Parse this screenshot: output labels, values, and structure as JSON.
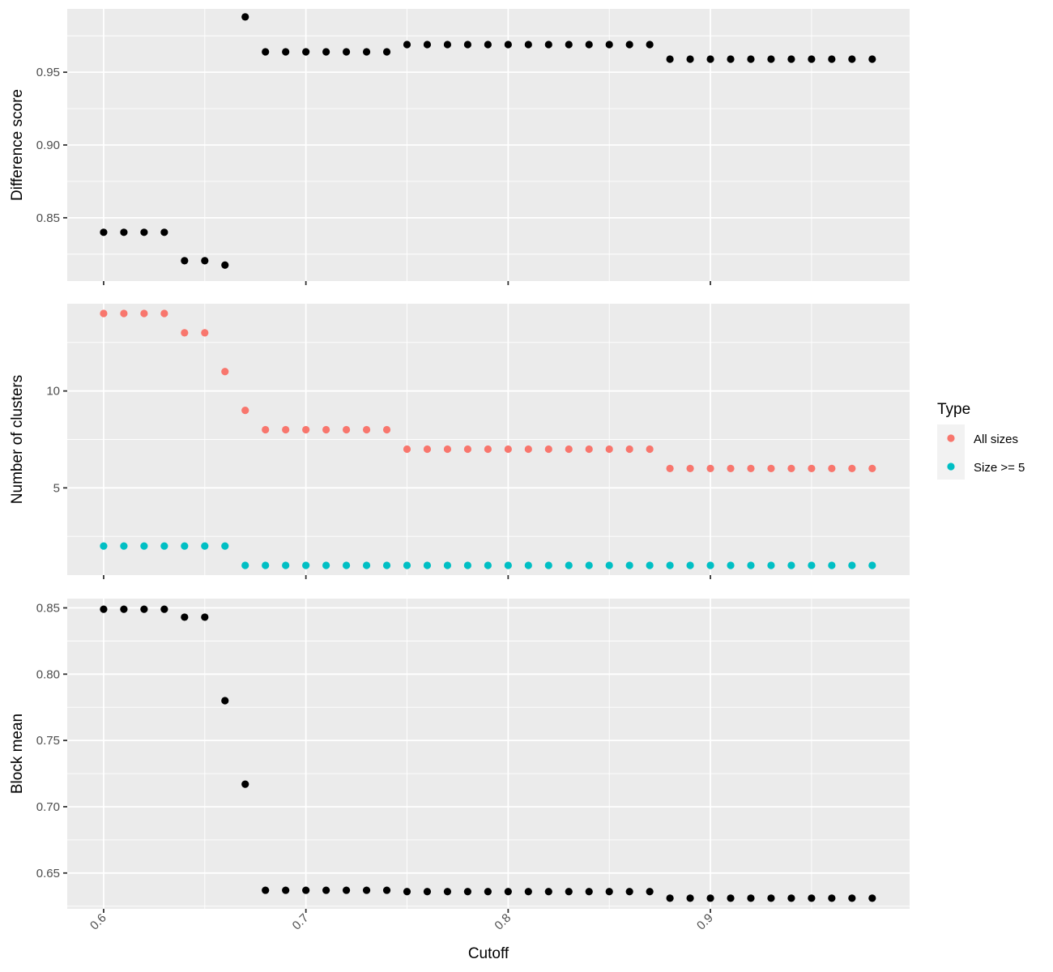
{
  "chart_data": [
    {
      "type": "scatter",
      "ylabel": "Difference score",
      "xlim": [
        0.582,
        0.9985
      ],
      "ylim": [
        0.8065,
        0.9935
      ],
      "y_ticks": [
        0.85,
        0.9,
        0.95
      ],
      "y_tick_labels": [
        "0.85",
        "0.90",
        "0.95"
      ],
      "x": [
        0.6,
        0.61,
        0.62,
        0.63,
        0.64,
        0.65,
        0.66,
        0.67,
        0.68,
        0.69,
        0.7,
        0.71,
        0.72,
        0.73,
        0.74,
        0.75,
        0.76,
        0.77,
        0.78,
        0.79,
        0.8,
        0.81,
        0.82,
        0.83,
        0.84,
        0.85,
        0.86,
        0.87,
        0.88,
        0.89,
        0.9,
        0.91,
        0.92,
        0.93,
        0.94,
        0.95,
        0.96,
        0.97,
        0.98
      ],
      "series": [
        {
          "color": "#000000",
          "values": [
            0.84,
            0.84,
            0.84,
            0.84,
            0.8205,
            0.8205,
            0.8175,
            0.988,
            0.964,
            0.964,
            0.964,
            0.964,
            0.964,
            0.964,
            0.964,
            0.969,
            0.969,
            0.969,
            0.969,
            0.969,
            0.969,
            0.969,
            0.969,
            0.969,
            0.969,
            0.969,
            0.969,
            0.969,
            0.959,
            0.959,
            0.959,
            0.959,
            0.959,
            0.959,
            0.959,
            0.959,
            0.959,
            0.959,
            0.959
          ]
        }
      ]
    },
    {
      "type": "scatter",
      "ylabel": "Number of clusters",
      "xlim": [
        0.582,
        0.9985
      ],
      "ylim": [
        0.5,
        14.5
      ],
      "y_ticks": [
        5,
        10
      ],
      "y_tick_labels": [
        "5",
        "10"
      ],
      "x": [
        0.6,
        0.61,
        0.62,
        0.63,
        0.64,
        0.65,
        0.66,
        0.67,
        0.68,
        0.69,
        0.7,
        0.71,
        0.72,
        0.73,
        0.74,
        0.75,
        0.76,
        0.77,
        0.78,
        0.79,
        0.8,
        0.81,
        0.82,
        0.83,
        0.84,
        0.85,
        0.86,
        0.87,
        0.88,
        0.89,
        0.9,
        0.91,
        0.92,
        0.93,
        0.94,
        0.95,
        0.96,
        0.97,
        0.98
      ],
      "series": [
        {
          "name": "All sizes",
          "color": "#F8766D",
          "values": [
            14,
            14,
            14,
            14,
            13,
            13,
            11,
            9,
            8,
            8,
            8,
            8,
            8,
            8,
            8,
            7,
            7,
            7,
            7,
            7,
            7,
            7,
            7,
            7,
            7,
            7,
            7,
            7,
            6,
            6,
            6,
            6,
            6,
            6,
            6,
            6,
            6,
            6,
            6
          ]
        },
        {
          "name": "Size >= 5",
          "color": "#00BFC4",
          "values": [
            2,
            2,
            2,
            2,
            2,
            2,
            2,
            1,
            1,
            1,
            1,
            1,
            1,
            1,
            1,
            1,
            1,
            1,
            1,
            1,
            1,
            1,
            1,
            1,
            1,
            1,
            1,
            1,
            1,
            1,
            1,
            1,
            1,
            1,
            1,
            1,
            1,
            1,
            1
          ]
        }
      ]
    },
    {
      "type": "scatter",
      "ylabel": "Block mean",
      "xlabel": "Cutoff",
      "xlim": [
        0.582,
        0.9985
      ],
      "ylim": [
        0.623,
        0.857
      ],
      "y_ticks": [
        0.65,
        0.7,
        0.75,
        0.8,
        0.85
      ],
      "y_tick_labels": [
        "0.65",
        "0.70",
        "0.75",
        "0.80",
        "0.85"
      ],
      "x_ticks": [
        0.6,
        0.7,
        0.8,
        0.9
      ],
      "x_tick_labels": [
        "0.6",
        "0.7",
        "0.8",
        "0.9"
      ],
      "x": [
        0.6,
        0.61,
        0.62,
        0.63,
        0.64,
        0.65,
        0.66,
        0.67,
        0.68,
        0.69,
        0.7,
        0.71,
        0.72,
        0.73,
        0.74,
        0.75,
        0.76,
        0.77,
        0.78,
        0.79,
        0.8,
        0.81,
        0.82,
        0.83,
        0.84,
        0.85,
        0.86,
        0.87,
        0.88,
        0.89,
        0.9,
        0.91,
        0.92,
        0.93,
        0.94,
        0.95,
        0.96,
        0.97,
        0.98
      ],
      "series": [
        {
          "color": "#000000",
          "values": [
            0.849,
            0.849,
            0.849,
            0.849,
            0.843,
            0.843,
            0.78,
            0.717,
            0.637,
            0.637,
            0.637,
            0.637,
            0.637,
            0.637,
            0.637,
            0.636,
            0.636,
            0.636,
            0.636,
            0.636,
            0.636,
            0.636,
            0.636,
            0.636,
            0.636,
            0.636,
            0.636,
            0.636,
            0.631,
            0.631,
            0.631,
            0.631,
            0.631,
            0.631,
            0.631,
            0.631,
            0.631,
            0.631,
            0.631
          ]
        }
      ]
    }
  ],
  "legend": {
    "title": "Type",
    "position": "right",
    "items": [
      {
        "label": "All sizes",
        "color": "#F8766D"
      },
      {
        "label": "Size >= 5",
        "color": "#00BFC4"
      }
    ]
  }
}
